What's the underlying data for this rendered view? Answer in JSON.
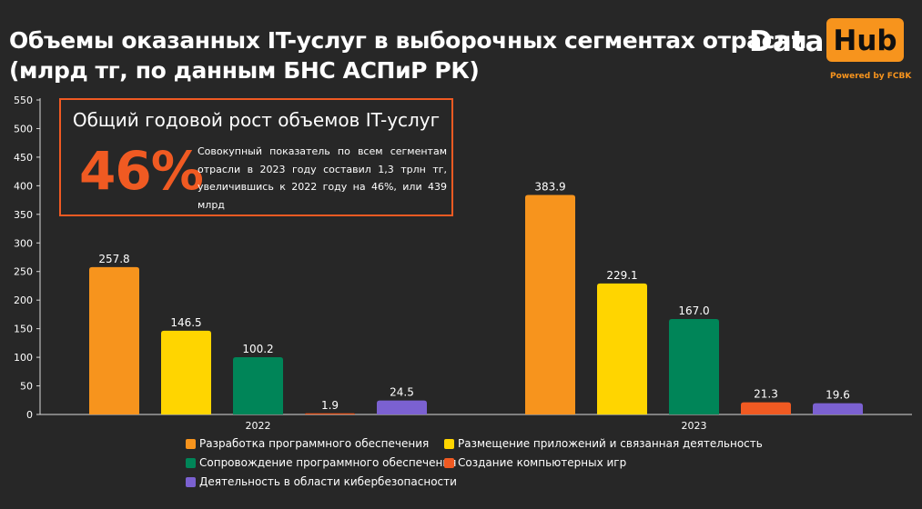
{
  "title": {
    "line1": "Объемы оказанных IT-услуг в выборочных сегментах отрасли",
    "line2": "(млрд тг, по данным БНС АСПиР РК)"
  },
  "logo": {
    "word1": "Data",
    "word2": "Hub",
    "tagline": "Powered by FCBK"
  },
  "callout": {
    "heading": "Общий годовой рост объемов IT-услуг",
    "value": "46%",
    "text": "Совокупный показатель по всем сегментам отрасли в 2023 году составил 1,3 трлн тг, увеличившись к 2022 году на 46%, или 439 млрд"
  },
  "colors": {
    "background": "#272727",
    "accent": "#f05a22",
    "brand": "#f7941d"
  },
  "chart_data": {
    "type": "bar",
    "categories": [
      "2022",
      "2023"
    ],
    "ylim": [
      0,
      550
    ],
    "yticks": [
      0,
      50,
      100,
      150,
      200,
      250,
      300,
      350,
      400,
      450,
      500,
      550
    ],
    "grid": false,
    "legend_position": "bottom",
    "series": [
      {
        "name": "Разработка программного обеспечения",
        "color": "#f7941d",
        "values": [
          257.8,
          383.9
        ],
        "labels": [
          "257.8",
          "383.9"
        ]
      },
      {
        "name": "Размещение приложений и связанная деятельность",
        "color": "#ffd500",
        "values": [
          146.5,
          229.1
        ],
        "labels": [
          "146.5",
          "229.1"
        ]
      },
      {
        "name": "Сопровождение программного обеспечения",
        "color": "#008558",
        "values": [
          100.2,
          167.0
        ],
        "labels": [
          "100.2",
          "167.0"
        ]
      },
      {
        "name": "Создание компьютерных игр",
        "color": "#f05a22",
        "values": [
          1.9,
          21.3
        ],
        "labels": [
          "1.9",
          "21.3"
        ]
      },
      {
        "name": "Деятельность в области кибербезопасности",
        "color": "#7b61d1",
        "values": [
          24.5,
          19.6
        ],
        "labels": [
          "24.5",
          "19.6"
        ]
      }
    ]
  }
}
